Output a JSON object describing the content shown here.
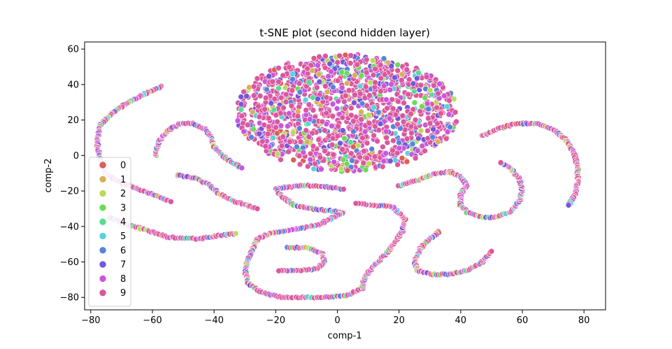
{
  "chart_data": {
    "type": "scatter",
    "title": "t-SNE plot (second hidden layer)",
    "xlabel": "comp-1",
    "ylabel": "comp-2",
    "xlim": [
      -82,
      87
    ],
    "ylim": [
      -87,
      64
    ],
    "xticks": [
      -80,
      -60,
      -40,
      -20,
      0,
      20,
      40,
      60,
      80
    ],
    "yticks": [
      -80,
      -60,
      -40,
      -20,
      0,
      20,
      40,
      60
    ],
    "grid": false,
    "legend_position": "lower-left",
    "legend": [
      {
        "label": "0",
        "color": "#db5f57"
      },
      {
        "label": "1",
        "color": "#dbae57"
      },
      {
        "label": "2",
        "color": "#b9db57"
      },
      {
        "label": "3",
        "color": "#69db57"
      },
      {
        "label": "4",
        "color": "#57db94"
      },
      {
        "label": "5",
        "color": "#57d3db"
      },
      {
        "label": "6",
        "color": "#5784db"
      },
      {
        "label": "7",
        "color": "#7557db"
      },
      {
        "label": "8",
        "color": "#c957db"
      },
      {
        "label": "9",
        "color": "#db579e"
      }
    ],
    "clusters": [
      {
        "shape": "ellipse",
        "center": [
          3,
          24
        ],
        "radius": [
          36,
          33
        ],
        "note": "dense mixed-class blob"
      },
      {
        "shape": "curve",
        "points": [
          [
            -57,
            39
          ],
          [
            -62,
            35
          ],
          [
            -68,
            30
          ],
          [
            -73,
            24
          ],
          [
            -77,
            17
          ],
          [
            -78,
            8
          ],
          [
            -77,
            -2
          ],
          [
            -75,
            -10
          ],
          [
            -72,
            -14
          ],
          [
            -66,
            -18
          ],
          [
            -60,
            -22
          ],
          [
            -54,
            -26
          ]
        ]
      },
      {
        "shape": "curve",
        "points": [
          [
            -74,
            -35
          ],
          [
            -70,
            -38
          ],
          [
            -62,
            -42
          ],
          [
            -55,
            -46
          ],
          [
            -45,
            -47
          ],
          [
            -38,
            -45
          ],
          [
            -33,
            -44
          ]
        ]
      },
      {
        "shape": "curve",
        "points": [
          [
            -59,
            0
          ],
          [
            -58,
            8
          ],
          [
            -55,
            14
          ],
          [
            -51,
            18
          ],
          [
            -47,
            18
          ],
          [
            -43,
            15
          ],
          [
            -41,
            10
          ],
          [
            -40,
            5
          ],
          [
            -36,
            -2
          ],
          [
            -31,
            -7
          ]
        ]
      },
      {
        "shape": "curve",
        "points": [
          [
            -52,
            -11
          ],
          [
            -46,
            -13
          ],
          [
            -42,
            -16
          ],
          [
            -38,
            -22
          ],
          [
            -33,
            -26
          ],
          [
            -26,
            -30
          ]
        ]
      },
      {
        "shape": "curve",
        "points": [
          [
            -12,
            -17
          ],
          [
            -17,
            -18
          ],
          [
            -20,
            -19
          ],
          [
            -18,
            -23
          ],
          [
            -14,
            -28
          ],
          [
            -9,
            -30
          ],
          [
            -3,
            -31
          ],
          [
            2,
            -32
          ],
          [
            -6,
            -39
          ],
          [
            -15,
            -42
          ],
          [
            -22,
            -44
          ],
          [
            -26,
            -47
          ],
          [
            -28,
            -55
          ],
          [
            -30,
            -64
          ],
          [
            -29,
            -72
          ],
          [
            -25,
            -77
          ],
          [
            -18,
            -80
          ],
          [
            -12,
            -80
          ],
          [
            -5,
            -80
          ],
          [
            3,
            -79
          ],
          [
            8,
            -75
          ],
          [
            9,
            -68
          ],
          [
            12,
            -62
          ],
          [
            17,
            -53
          ],
          [
            21,
            -43
          ],
          [
            22,
            -36
          ],
          [
            18,
            -29
          ],
          [
            6,
            -27
          ]
        ]
      },
      {
        "shape": "curve",
        "points": [
          [
            -16,
            -52
          ],
          [
            -10,
            -52
          ],
          [
            -5,
            -55
          ],
          [
            -4,
            -60
          ],
          [
            -7,
            -64
          ],
          [
            -14,
            -65
          ],
          [
            -19,
            -65
          ]
        ]
      },
      {
        "shape": "curve",
        "points": [
          [
            -14,
            -17
          ],
          [
            -8,
            -17
          ],
          [
            -2,
            -18
          ],
          [
            2,
            -19
          ]
        ]
      },
      {
        "shape": "curve",
        "points": [
          [
            20,
            -17
          ],
          [
            26,
            -14
          ],
          [
            32,
            -10
          ],
          [
            37,
            -9
          ]
        ]
      },
      {
        "shape": "curve",
        "points": [
          [
            33,
            -43
          ],
          [
            30,
            -47
          ],
          [
            27,
            -52
          ],
          [
            25,
            -60
          ],
          [
            26,
            -65
          ],
          [
            31,
            -67
          ],
          [
            36,
            -67
          ],
          [
            42,
            -65
          ],
          [
            47,
            -60
          ],
          [
            50,
            -54
          ]
        ]
      },
      {
        "shape": "curve",
        "points": [
          [
            36,
            -9
          ],
          [
            40,
            -12
          ],
          [
            42,
            -17
          ],
          [
            40,
            -22
          ],
          [
            40,
            -28
          ],
          [
            42,
            -32
          ],
          [
            47,
            -35
          ],
          [
            51,
            -35
          ],
          [
            56,
            -32
          ],
          [
            59,
            -26
          ],
          [
            60,
            -20
          ],
          [
            59,
            -13
          ],
          [
            56,
            -7
          ],
          [
            53,
            -4
          ]
        ]
      },
      {
        "shape": "curve",
        "points": [
          [
            47,
            11
          ],
          [
            52,
            15
          ],
          [
            58,
            18
          ],
          [
            65,
            18
          ],
          [
            71,
            14
          ],
          [
            75,
            7
          ],
          [
            77,
            0
          ],
          [
            78,
            -7
          ],
          [
            78,
            -15
          ],
          [
            77,
            -22
          ],
          [
            75,
            -28
          ]
        ]
      }
    ]
  }
}
